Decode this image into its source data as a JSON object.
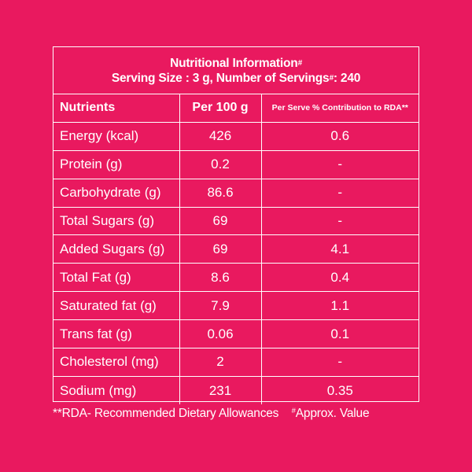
{
  "header": {
    "title": "Nutritional Information",
    "title_mark": "#",
    "serving_prefix": "Serving Size : 3 g, Number of Servings",
    "serving_mark": "#",
    "serving_suffix": ": 240"
  },
  "table": {
    "headers": {
      "nutrients": "Nutrients",
      "per100": "Per 100 g",
      "rda": "Per Serve % Contribution to RDA**"
    },
    "rows": [
      {
        "name": "Energy (kcal)",
        "per100": "426",
        "rda": "0.6"
      },
      {
        "name": "Protein (g)",
        "per100": "0.2",
        "rda": "-"
      },
      {
        "name": "Carbohydrate (g)",
        "per100": "86.6",
        "rda": "-"
      },
      {
        "name": "Total Sugars (g)",
        "per100": "69",
        "rda": "-"
      },
      {
        "name": "Added Sugars (g)",
        "per100": "69",
        "rda": "4.1"
      },
      {
        "name": "Total Fat (g)",
        "per100": "8.6",
        "rda": "0.4"
      },
      {
        "name": "Saturated fat (g)",
        "per100": "7.9",
        "rda": "1.1"
      },
      {
        "name": "Trans fat (g)",
        "per100": "0.06",
        "rda": "0.1"
      },
      {
        "name": "Cholesterol (mg)",
        "per100": "2",
        "rda": "-"
      },
      {
        "name": "Sodium (mg)",
        "per100": "231",
        "rda": "0.35"
      }
    ]
  },
  "footer": {
    "rda_note": "**RDA- Recommended Dietary Allowances",
    "approx_mark": "#",
    "approx_note": "Approx. Value"
  },
  "colors": {
    "background": "#E9195F",
    "foreground": "#FFFFFF"
  }
}
